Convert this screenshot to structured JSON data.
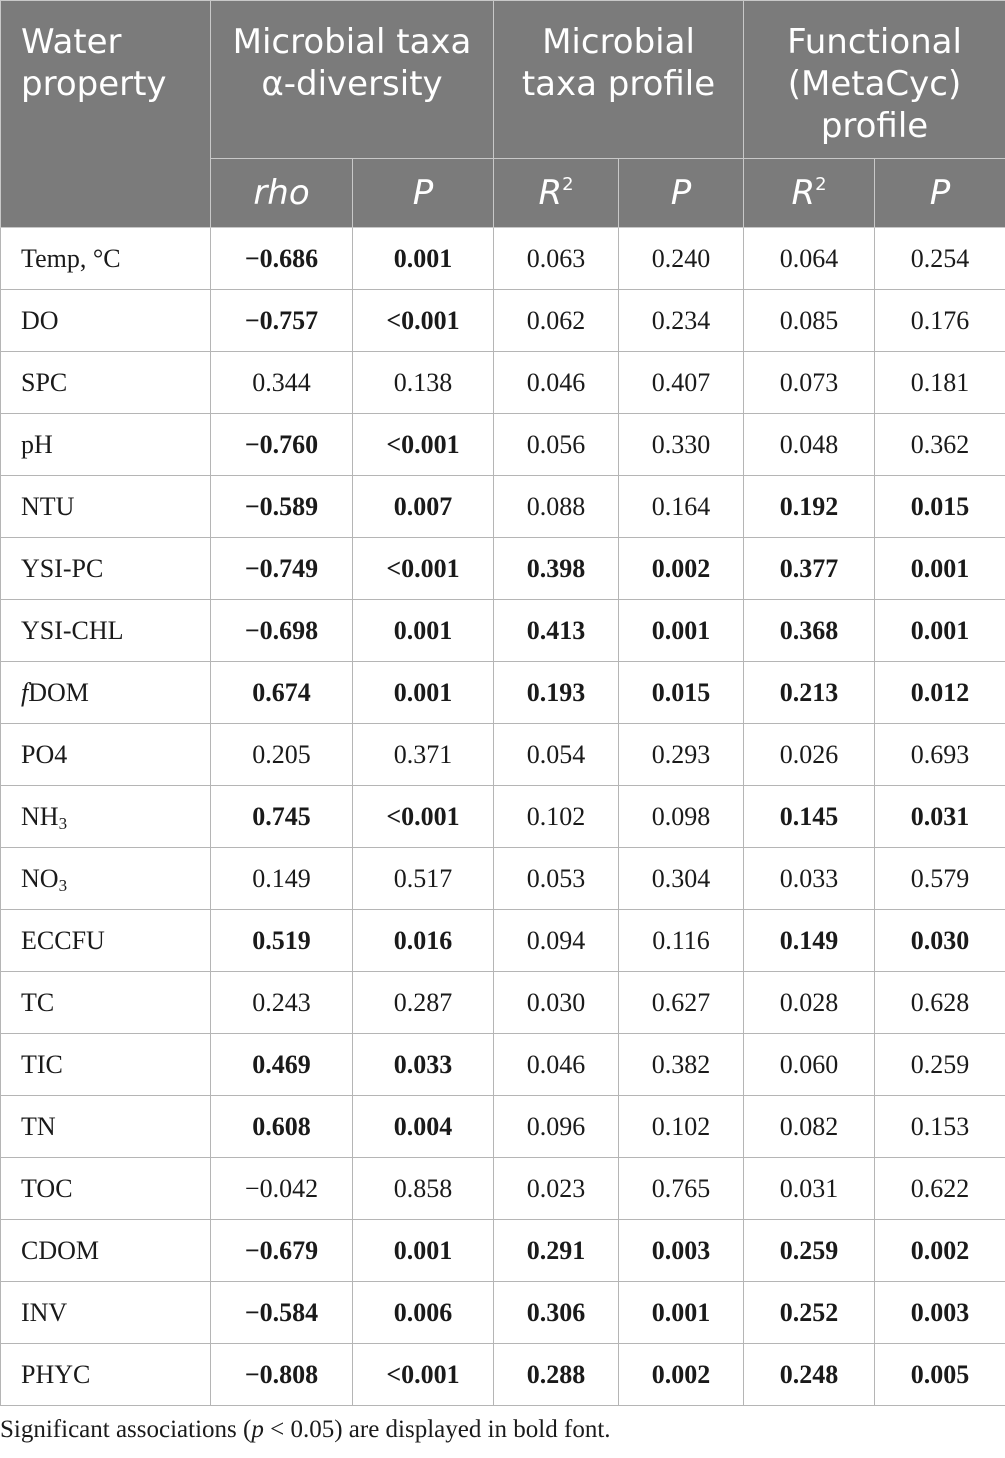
{
  "header": {
    "water_property": [
      "Water",
      "property"
    ],
    "group1": [
      "Microbial taxa",
      "α-diversity"
    ],
    "group2": [
      "Microbial",
      "taxa profile"
    ],
    "group3": [
      "Functional",
      "(MetaCyc)",
      "profile"
    ],
    "sub": {
      "rho": "rho",
      "p": "P",
      "r2_base": "R",
      "r2_sup": "2"
    }
  },
  "rows": [
    {
      "name": "Temp, °C",
      "v": [
        "−0.686",
        "0.001",
        "0.063",
        "0.240",
        "0.064",
        "0.254"
      ],
      "bold": [
        1,
        1,
        0,
        0,
        0,
        0
      ]
    },
    {
      "name": "DO",
      "v": [
        "−0.757",
        "<0.001",
        "0.062",
        "0.234",
        "0.085",
        "0.176"
      ],
      "bold": [
        1,
        1,
        0,
        0,
        0,
        0
      ]
    },
    {
      "name": "SPC",
      "v": [
        "0.344",
        "0.138",
        "0.046",
        "0.407",
        "0.073",
        "0.181"
      ],
      "bold": [
        0,
        0,
        0,
        0,
        0,
        0
      ]
    },
    {
      "name": "pH",
      "v": [
        "−0.760",
        "<0.001",
        "0.056",
        "0.330",
        "0.048",
        "0.362"
      ],
      "bold": [
        1,
        1,
        0,
        0,
        0,
        0
      ]
    },
    {
      "name": "NTU",
      "v": [
        "−0.589",
        "0.007",
        "0.088",
        "0.164",
        "0.192",
        "0.015"
      ],
      "bold": [
        1,
        1,
        0,
        0,
        1,
        1
      ]
    },
    {
      "name": "YSI-PC",
      "v": [
        "−0.749",
        "<0.001",
        "0.398",
        "0.002",
        "0.377",
        "0.001"
      ],
      "bold": [
        1,
        1,
        1,
        1,
        1,
        1
      ]
    },
    {
      "name": "YSI-CHL",
      "v": [
        "−0.698",
        "0.001",
        "0.413",
        "0.001",
        "0.368",
        "0.001"
      ],
      "bold": [
        1,
        1,
        1,
        1,
        1,
        1
      ]
    },
    {
      "name_prefix": "f",
      "name": "DOM",
      "v": [
        "0.674",
        "0.001",
        "0.193",
        "0.015",
        "0.213",
        "0.012"
      ],
      "bold": [
        1,
        1,
        1,
        1,
        1,
        1
      ]
    },
    {
      "name": "PO4",
      "v": [
        "0.205",
        "0.371",
        "0.054",
        "0.293",
        "0.026",
        "0.693"
      ],
      "bold": [
        0,
        0,
        0,
        0,
        0,
        0
      ]
    },
    {
      "name": "NH",
      "name_sub": "3",
      "v": [
        "0.745",
        "<0.001",
        "0.102",
        "0.098",
        "0.145",
        "0.031"
      ],
      "bold": [
        1,
        1,
        0,
        0,
        1,
        1
      ]
    },
    {
      "name": "NO",
      "name_sub": "3",
      "v": [
        "0.149",
        "0.517",
        "0.053",
        "0.304",
        "0.033",
        "0.579"
      ],
      "bold": [
        0,
        0,
        0,
        0,
        0,
        0
      ]
    },
    {
      "name": "ECCFU",
      "v": [
        "0.519",
        "0.016",
        "0.094",
        "0.116",
        "0.149",
        "0.030"
      ],
      "bold": [
        1,
        1,
        0,
        0,
        1,
        1
      ]
    },
    {
      "name": "TC",
      "v": [
        "0.243",
        "0.287",
        "0.030",
        "0.627",
        "0.028",
        "0.628"
      ],
      "bold": [
        0,
        0,
        0,
        0,
        0,
        0
      ]
    },
    {
      "name": "TIC",
      "v": [
        "0.469",
        "0.033",
        "0.046",
        "0.382",
        "0.060",
        "0.259"
      ],
      "bold": [
        1,
        1,
        0,
        0,
        0,
        0
      ]
    },
    {
      "name": "TN",
      "v": [
        "0.608",
        "0.004",
        "0.096",
        "0.102",
        "0.082",
        "0.153"
      ],
      "bold": [
        1,
        1,
        0,
        0,
        0,
        0
      ]
    },
    {
      "name": "TOC",
      "v": [
        "−0.042",
        "0.858",
        "0.023",
        "0.765",
        "0.031",
        "0.622"
      ],
      "bold": [
        0,
        0,
        0,
        0,
        0,
        0
      ]
    },
    {
      "name": "CDOM",
      "v": [
        "−0.679",
        "0.001",
        "0.291",
        "0.003",
        "0.259",
        "0.002"
      ],
      "bold": [
        1,
        1,
        1,
        1,
        1,
        1
      ]
    },
    {
      "name": "INV",
      "v": [
        "−0.584",
        "0.006",
        "0.306",
        "0.001",
        "0.252",
        "0.003"
      ],
      "bold": [
        1,
        1,
        1,
        1,
        1,
        1
      ]
    },
    {
      "name": "PHYC",
      "v": [
        "−0.808",
        "<0.001",
        "0.288",
        "0.002",
        "0.248",
        "0.005"
      ],
      "bold": [
        1,
        1,
        1,
        1,
        1,
        1
      ]
    }
  ],
  "footnote": {
    "before": "Significant associations (",
    "p": "p",
    "after": " < 0.05) are displayed in bold font."
  }
}
